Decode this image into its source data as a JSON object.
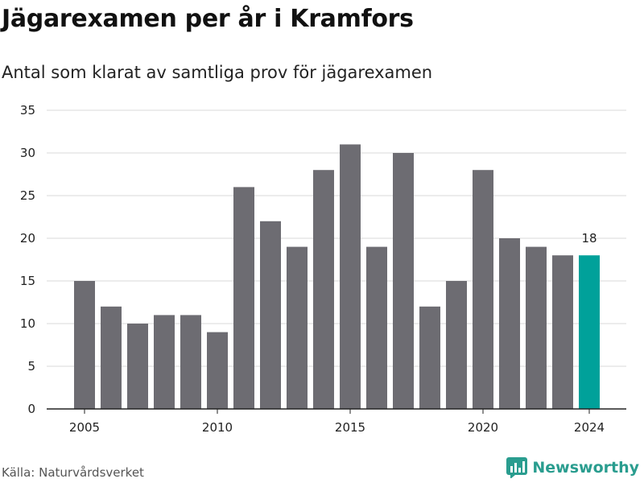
{
  "title": "Jägarexamen per år i Kramfors",
  "subtitle": "Antal som klarat av samtliga prov för jägarexamen",
  "source": "Källa: Naturvårdsverket",
  "brand": {
    "name": "Newsworthy",
    "icon": "newsworthy-logo-icon"
  },
  "colors": {
    "bar": "#6d6c72",
    "highlight": "#00a19a",
    "grid": "#d9d9d9",
    "axis": "#222222",
    "brand": "#2a9d8f"
  },
  "chart_data": {
    "type": "bar",
    "categories": [
      2005,
      2006,
      2007,
      2008,
      2009,
      2010,
      2011,
      2012,
      2013,
      2014,
      2015,
      2016,
      2017,
      2018,
      2019,
      2020,
      2021,
      2022,
      2023,
      2024
    ],
    "values": [
      15,
      12,
      10,
      11,
      11,
      9,
      26,
      22,
      19,
      28,
      31,
      19,
      30,
      12,
      15,
      28,
      20,
      19,
      18,
      18
    ],
    "highlight": {
      "category": 2024,
      "label": "18"
    },
    "ylim": [
      0,
      35
    ],
    "yticks": [
      "0",
      "5",
      "10",
      "15",
      "20",
      "25",
      "30",
      "35"
    ],
    "xticks": [
      "2005",
      "2010",
      "2015",
      "2020",
      "2024"
    ],
    "grid": true,
    "xlabel": "",
    "ylabel": ""
  }
}
